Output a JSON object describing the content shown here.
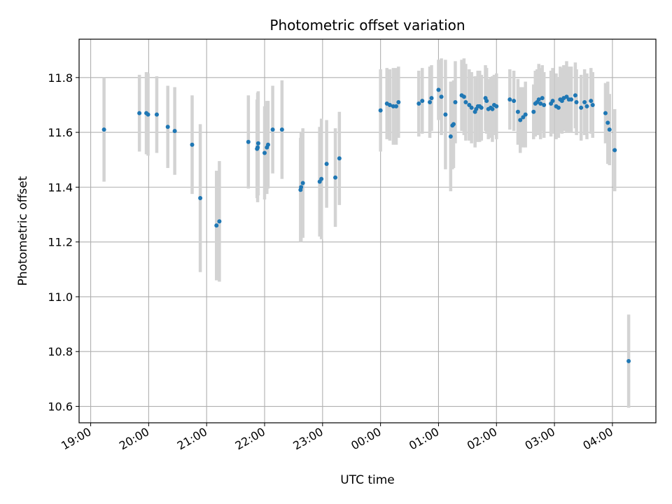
{
  "chart_data": {
    "type": "scatter",
    "title": "Photometric offset variation",
    "xlabel": "UTC time",
    "ylabel": "Photometric offset",
    "x_unit": "hours after 19:00 UTC",
    "xlim": [
      -0.2,
      9.75
    ],
    "ylim": [
      10.54,
      11.94
    ],
    "grid": true,
    "x_ticks": [
      {
        "value": 0,
        "label": "19:00"
      },
      {
        "value": 1,
        "label": "20:00"
      },
      {
        "value": 2,
        "label": "21:00"
      },
      {
        "value": 3,
        "label": "22:00"
      },
      {
        "value": 4,
        "label": "23:00"
      },
      {
        "value": 5,
        "label": "00:00"
      },
      {
        "value": 6,
        "label": "01:00"
      },
      {
        "value": 7,
        "label": "02:00"
      },
      {
        "value": 8,
        "label": "03:00"
      },
      {
        "value": 9,
        "label": "04:00"
      }
    ],
    "y_ticks": [
      {
        "value": 10.6,
        "label": "10.6"
      },
      {
        "value": 10.8,
        "label": "10.8"
      },
      {
        "value": 11.0,
        "label": "11.0"
      },
      {
        "value": 11.2,
        "label": "11.2"
      },
      {
        "value": 11.4,
        "label": "11.4"
      },
      {
        "value": 11.6,
        "label": "11.6"
      },
      {
        "value": 11.8,
        "label": "11.8"
      }
    ],
    "colors": {
      "point": "#1f77b4",
      "errorbar": "#d3d3d3",
      "grid": "#b0b0b0"
    },
    "series": [
      {
        "x": [
          0.23,
          0.84,
          0.96,
          0.99,
          1.14,
          1.33,
          1.45,
          1.75,
          1.89,
          2.17,
          2.22,
          2.72,
          2.87,
          2.88,
          2.89,
          3.0,
          3.04,
          3.06,
          3.14,
          3.3,
          3.62,
          3.63,
          3.66,
          3.95,
          3.98,
          4.07,
          4.22,
          4.29,
          5.0,
          5.11,
          5.16,
          5.22,
          5.27,
          5.31,
          5.66,
          5.72,
          5.85,
          5.88,
          6.0,
          6.05,
          6.12,
          6.21,
          6.24,
          6.26,
          6.29,
          6.4,
          6.44,
          6.47,
          6.53,
          6.57,
          6.63,
          6.65,
          6.68,
          6.71,
          6.74,
          6.81,
          6.83,
          6.86,
          6.9,
          6.93,
          6.96,
          7.0,
          7.23,
          7.3,
          7.37,
          7.41,
          7.46,
          7.5,
          7.64,
          7.67,
          7.7,
          7.73,
          7.76,
          7.79,
          7.82,
          7.94,
          7.97,
          8.03,
          8.07,
          8.1,
          8.13,
          8.16,
          8.21,
          8.25,
          8.29,
          8.36,
          8.38,
          8.46,
          8.52,
          8.56,
          8.63,
          8.66,
          8.88,
          8.92,
          8.95,
          9.04,
          9.28
        ],
        "y": [
          11.61,
          11.67,
          11.67,
          11.665,
          11.665,
          11.62,
          11.605,
          11.555,
          11.36,
          11.26,
          11.275,
          11.565,
          11.54,
          11.545,
          11.56,
          11.525,
          11.545,
          11.555,
          11.61,
          11.61,
          11.39,
          11.4,
          11.415,
          11.42,
          11.43,
          11.485,
          11.435,
          11.505,
          11.68,
          11.705,
          11.7,
          11.695,
          11.695,
          11.71,
          11.705,
          11.715,
          11.71,
          11.725,
          11.755,
          11.73,
          11.665,
          11.585,
          11.625,
          11.63,
          11.71,
          11.735,
          11.73,
          11.71,
          11.7,
          11.69,
          11.675,
          11.685,
          11.695,
          11.695,
          11.69,
          11.725,
          11.715,
          11.685,
          11.69,
          11.685,
          11.7,
          11.695,
          11.72,
          11.715,
          11.675,
          11.645,
          11.655,
          11.665,
          11.675,
          11.705,
          11.71,
          11.72,
          11.705,
          11.725,
          11.7,
          11.705,
          11.715,
          11.695,
          11.69,
          11.72,
          11.715,
          11.725,
          11.73,
          11.72,
          11.72,
          11.735,
          11.71,
          11.69,
          11.71,
          11.695,
          11.715,
          11.7,
          11.67,
          11.635,
          11.61,
          11.535,
          10.765
        ],
        "yerr": [
          0.19,
          0.14,
          0.15,
          0.15,
          0.14,
          0.15,
          0.16,
          0.18,
          0.27,
          0.2,
          0.22,
          0.17,
          0.18,
          0.2,
          0.19,
          0.17,
          0.17,
          0.16,
          0.16,
          0.18,
          0.19,
          0.2,
          0.2,
          0.2,
          0.22,
          0.16,
          0.18,
          0.17,
          0.15,
          0.13,
          0.13,
          0.14,
          0.14,
          0.13,
          0.12,
          0.12,
          0.13,
          0.12,
          0.11,
          0.14,
          0.2,
          0.2,
          0.16,
          0.16,
          0.15,
          0.13,
          0.14,
          0.14,
          0.13,
          0.13,
          0.13,
          0.12,
          0.13,
          0.13,
          0.12,
          0.12,
          0.12,
          0.11,
          0.11,
          0.12,
          0.11,
          0.12,
          0.11,
          0.11,
          0.12,
          0.12,
          0.11,
          0.12,
          0.1,
          0.12,
          0.12,
          0.13,
          0.13,
          0.12,
          0.12,
          0.12,
          0.12,
          0.12,
          0.11,
          0.12,
          0.12,
          0.12,
          0.13,
          0.12,
          0.12,
          0.12,
          0.12,
          0.12,
          0.12,
          0.12,
          0.12,
          0.12,
          0.11,
          0.15,
          0.13,
          0.15,
          0.17
        ]
      }
    ]
  }
}
